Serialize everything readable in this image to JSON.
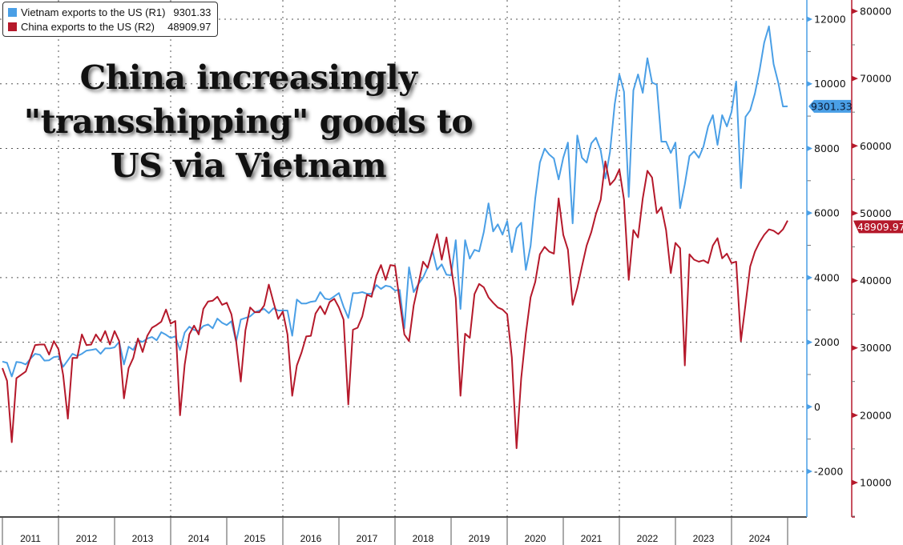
{
  "title_lines": [
    "China increasingly",
    "\"transshipping\" goods to",
    "US via Vietnam"
  ],
  "legend": [
    {
      "label": "Vietnam exports to the US (R1)",
      "value": "9301.33",
      "color": "#4a9fe6"
    },
    {
      "label": "China exports to the US (R2)",
      "value": "48909.97",
      "color": "#b5192b"
    }
  ],
  "chart_data": {
    "type": "line",
    "title": "China increasingly \"transshipping\" goods to US via Vietnam",
    "x_start": "2010-12",
    "x_frequency": "monthly",
    "x_tick_labels": [
      "2011",
      "2012",
      "2013",
      "2014",
      "2015",
      "2016",
      "2017",
      "2018",
      "2019",
      "2020",
      "2021",
      "2022",
      "2023",
      "2024"
    ],
    "grid": true,
    "legend_position": "top-left",
    "axes": {
      "R1": {
        "ylim": [
          -3000,
          12600
        ],
        "ticks": [
          -2000,
          0,
          2000,
          4000,
          6000,
          8000,
          10000,
          12000
        ],
        "color": "#4a9fe6"
      },
      "R2": {
        "ylim": [
          5000,
          81000
        ],
        "ticks": [
          10000,
          20000,
          30000,
          40000,
          50000,
          60000,
          70000,
          80000
        ],
        "color": "#b5192b"
      }
    },
    "series": [
      {
        "name": "Vietnam exports to the US (R1)",
        "axis": "R1",
        "color": "#4a9fe6",
        "last_value": "9301.33",
        "values": [
          1400,
          1360,
          940,
          1390,
          1370,
          1310,
          1490,
          1640,
          1610,
          1430,
          1440,
          1540,
          1560,
          1240,
          1440,
          1640,
          1570,
          1640,
          1740,
          1760,
          1790,
          1640,
          1810,
          1810,
          1840,
          2010,
          1310,
          1860,
          1760,
          2060,
          2010,
          2110,
          2160,
          2060,
          2310,
          2230,
          2130,
          2180,
          1760,
          2300,
          2480,
          2380,
          2350,
          2500,
          2550,
          2430,
          2730,
          2600,
          2530,
          2650,
          2010,
          2700,
          2750,
          2800,
          2930,
          2980,
          3030,
          2900,
          3050,
          2980,
          2980,
          2980,
          2200,
          3320,
          3200,
          3200,
          3250,
          3270,
          3550,
          3350,
          3320,
          3420,
          3520,
          3100,
          2750,
          3520,
          3520,
          3550,
          3500,
          3500,
          3770,
          3650,
          3750,
          3720,
          3600,
          3620,
          2430,
          4320,
          3550,
          3800,
          4000,
          4320,
          4840,
          4240,
          4410,
          4090,
          4070,
          5160,
          3030,
          5160,
          4590,
          4860,
          4810,
          5410,
          6300,
          5430,
          5650,
          5330,
          5750,
          4790,
          5530,
          5700,
          4240,
          4980,
          6450,
          7560,
          7990,
          7810,
          7690,
          7040,
          7710,
          8180,
          5680,
          8400,
          7710,
          7560,
          8160,
          8330,
          7940,
          7070,
          7890,
          9370,
          10290,
          9750,
          6500,
          9800,
          10290,
          9720,
          10790,
          10040,
          9970,
          8210,
          8210,
          7860,
          8180,
          6150,
          6890,
          7760,
          7910,
          7710,
          8060,
          8680,
          9030,
          8110,
          9030,
          8680,
          9130,
          10070,
          6770,
          8980,
          9180,
          9700,
          10420,
          11280,
          11780,
          10610,
          10040,
          9300,
          9301.33
        ]
      },
      {
        "name": "China exports to the US (R2)",
        "axis": "R2",
        "color": "#b5192b",
        "last_value": "48909.97",
        "values": [
          27000,
          25100,
          16000,
          25500,
          26000,
          26500,
          28500,
          30400,
          30500,
          30500,
          29000,
          31000,
          29800,
          26000,
          19500,
          28500,
          28500,
          32000,
          30400,
          30500,
          32000,
          31000,
          32500,
          30500,
          32500,
          31000,
          22500,
          27000,
          28500,
          31400,
          29400,
          31800,
          33000,
          33400,
          33900,
          35700,
          33600,
          34000,
          20000,
          27500,
          32000,
          33300,
          32000,
          35800,
          36900,
          37000,
          37600,
          36400,
          36700,
          35000,
          31000,
          25000,
          32600,
          36000,
          35300,
          35300,
          36300,
          39400,
          36800,
          34300,
          35400,
          32000,
          22900,
          27400,
          29300,
          31700,
          31800,
          35100,
          36200,
          35000,
          36800,
          37300,
          36000,
          34200,
          21600,
          32700,
          33000,
          34700,
          37900,
          37600,
          40700,
          42300,
          40100,
          42300,
          42200,
          37000,
          32000,
          31000,
          36300,
          39500,
          42800,
          41900,
          44400,
          46900,
          43100,
          46400,
          42000,
          37400,
          22900,
          32100,
          31500,
          38000,
          39500,
          39000,
          37500,
          36700,
          36000,
          35700,
          35000,
          28600,
          15100,
          25500,
          32100,
          37500,
          39800,
          43900,
          45000,
          44300,
          44000,
          52200,
          46800,
          44600,
          36400,
          38900,
          42100,
          45200,
          47200,
          49900,
          52000,
          57700,
          54200,
          55000,
          56500,
          52000,
          40100,
          47500,
          46400,
          52200,
          56300,
          55300,
          50000,
          50900,
          47500,
          41100,
          45600,
          44800,
          27400,
          43900,
          43100,
          42800,
          43000,
          42600,
          45200,
          46300,
          43300,
          44000,
          42600,
          42800,
          31000,
          36500,
          42100,
          44300,
          45700,
          46800,
          47600,
          47400,
          46900,
          47600,
          48909.97
        ]
      }
    ]
  }
}
